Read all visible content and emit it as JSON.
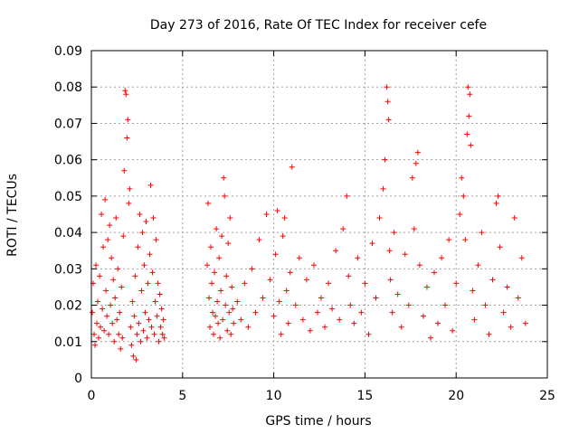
{
  "chart_data": {
    "type": "scatter",
    "title": "Day 273 of 2016, Rate Of TEC Index for receiver cefe",
    "xlabel": "GPS time / hours",
    "ylabel": "ROTI / TECUs",
    "xlim": [
      0,
      25
    ],
    "ylim": [
      0,
      0.09
    ],
    "xticks": [
      "0",
      "5",
      "10",
      "15",
      "20",
      "25"
    ],
    "yticks": [
      "0",
      "0.01",
      "0.02",
      "0.03",
      "0.04",
      "0.05",
      "0.06",
      "0.07",
      "0.08",
      "0.09"
    ],
    "grid": true,
    "marker": "+",
    "color": "#ff0000",
    "note": "Dense red '+' scatter; data gap from ~4.2 h to ~6.3 h. Points below are representative samples read from the plot.",
    "series": [
      {
        "name": "ROTI",
        "points": [
          [
            0.05,
            0.018
          ],
          [
            0.1,
            0.026
          ],
          [
            0.15,
            0.012
          ],
          [
            0.2,
            0.009
          ],
          [
            0.25,
            0.031
          ],
          [
            0.3,
            0.015
          ],
          [
            0.35,
            0.021
          ],
          [
            0.4,
            0.011
          ],
          [
            0.45,
            0.028
          ],
          [
            0.5,
            0.014
          ],
          [
            0.55,
            0.045
          ],
          [
            0.6,
            0.019
          ],
          [
            0.65,
            0.036
          ],
          [
            0.7,
            0.013
          ],
          [
            0.75,
            0.049
          ],
          [
            0.8,
            0.024
          ],
          [
            0.85,
            0.017
          ],
          [
            0.9,
            0.038
          ],
          [
            0.95,
            0.012
          ],
          [
            1.0,
            0.042
          ],
          [
            1.05,
            0.02
          ],
          [
            1.1,
            0.033
          ],
          [
            1.15,
            0.015
          ],
          [
            1.2,
            0.027
          ],
          [
            1.25,
            0.01
          ],
          [
            1.3,
            0.022
          ],
          [
            1.35,
            0.044
          ],
          [
            1.4,
            0.016
          ],
          [
            1.45,
            0.03
          ],
          [
            1.5,
            0.012
          ],
          [
            1.55,
            0.018
          ],
          [
            1.6,
            0.008
          ],
          [
            1.65,
            0.025
          ],
          [
            1.7,
            0.011
          ],
          [
            1.75,
            0.039
          ],
          [
            1.8,
            0.057
          ],
          [
            1.85,
            0.079
          ],
          [
            1.9,
            0.078
          ],
          [
            1.95,
            0.066
          ],
          [
            2.0,
            0.071
          ],
          [
            2.05,
            0.048
          ],
          [
            2.1,
            0.052
          ],
          [
            2.15,
            0.014
          ],
          [
            2.2,
            0.009
          ],
          [
            2.25,
            0.021
          ],
          [
            2.3,
            0.006
          ],
          [
            2.35,
            0.017
          ],
          [
            2.4,
            0.028
          ],
          [
            2.45,
            0.005
          ],
          [
            2.5,
            0.012
          ],
          [
            2.55,
            0.036
          ],
          [
            2.6,
            0.015
          ],
          [
            2.65,
            0.045
          ],
          [
            2.7,
            0.01
          ],
          [
            2.75,
            0.024
          ],
          [
            2.8,
            0.04
          ],
          [
            2.85,
            0.013
          ],
          [
            2.9,
            0.031
          ],
          [
            2.95,
            0.018
          ],
          [
            3.0,
            0.043
          ],
          [
            3.05,
            0.011
          ],
          [
            3.1,
            0.026
          ],
          [
            3.15,
            0.016
          ],
          [
            3.2,
            0.034
          ],
          [
            3.25,
            0.053
          ],
          [
            3.3,
            0.014
          ],
          [
            3.35,
            0.029
          ],
          [
            3.4,
            0.044
          ],
          [
            3.45,
            0.012
          ],
          [
            3.5,
            0.021
          ],
          [
            3.55,
            0.038
          ],
          [
            3.6,
            0.017
          ],
          [
            3.65,
            0.026
          ],
          [
            3.7,
            0.01
          ],
          [
            3.75,
            0.023
          ],
          [
            3.8,
            0.014
          ],
          [
            3.85,
            0.019
          ],
          [
            3.9,
            0.012
          ],
          [
            3.95,
            0.016
          ],
          [
            4.0,
            0.011
          ],
          [
            6.35,
            0.031
          ],
          [
            6.4,
            0.048
          ],
          [
            6.45,
            0.022
          ],
          [
            6.5,
            0.014
          ],
          [
            6.55,
            0.036
          ],
          [
            6.6,
            0.026
          ],
          [
            6.65,
            0.018
          ],
          [
            6.7,
            0.012
          ],
          [
            6.75,
            0.029
          ],
          [
            6.8,
            0.017
          ],
          [
            6.85,
            0.041
          ],
          [
            6.9,
            0.021
          ],
          [
            6.95,
            0.015
          ],
          [
            7.0,
            0.033
          ],
          [
            7.05,
            0.011
          ],
          [
            7.1,
            0.024
          ],
          [
            7.15,
            0.039
          ],
          [
            7.2,
            0.016
          ],
          [
            7.25,
            0.055
          ],
          [
            7.3,
            0.05
          ],
          [
            7.35,
            0.02
          ],
          [
            7.4,
            0.028
          ],
          [
            7.45,
            0.013
          ],
          [
            7.5,
            0.037
          ],
          [
            7.55,
            0.018
          ],
          [
            7.6,
            0.044
          ],
          [
            7.65,
            0.012
          ],
          [
            7.7,
            0.025
          ],
          [
            7.75,
            0.019
          ],
          [
            7.8,
            0.015
          ],
          [
            8.0,
            0.021
          ],
          [
            8.2,
            0.016
          ],
          [
            8.4,
            0.026
          ],
          [
            8.6,
            0.014
          ],
          [
            8.8,
            0.03
          ],
          [
            9.0,
            0.018
          ],
          [
            9.2,
            0.038
          ],
          [
            9.4,
            0.022
          ],
          [
            9.6,
            0.045
          ],
          [
            9.8,
            0.027
          ],
          [
            10.0,
            0.017
          ],
          [
            10.1,
            0.034
          ],
          [
            10.2,
            0.046
          ],
          [
            10.3,
            0.021
          ],
          [
            10.4,
            0.012
          ],
          [
            10.5,
            0.039
          ],
          [
            10.6,
            0.044
          ],
          [
            10.7,
            0.024
          ],
          [
            10.8,
            0.015
          ],
          [
            10.9,
            0.029
          ],
          [
            11.0,
            0.058
          ],
          [
            11.2,
            0.02
          ],
          [
            11.4,
            0.033
          ],
          [
            11.6,
            0.016
          ],
          [
            11.8,
            0.027
          ],
          [
            12.0,
            0.013
          ],
          [
            12.2,
            0.031
          ],
          [
            12.4,
            0.018
          ],
          [
            12.6,
            0.022
          ],
          [
            12.8,
            0.014
          ],
          [
            13.0,
            0.026
          ],
          [
            13.2,
            0.019
          ],
          [
            13.4,
            0.035
          ],
          [
            13.6,
            0.016
          ],
          [
            13.8,
            0.041
          ],
          [
            14.0,
            0.05
          ],
          [
            14.1,
            0.028
          ],
          [
            14.2,
            0.02
          ],
          [
            14.4,
            0.015
          ],
          [
            14.6,
            0.033
          ],
          [
            14.8,
            0.018
          ],
          [
            15.0,
            0.026
          ],
          [
            15.2,
            0.012
          ],
          [
            15.4,
            0.037
          ],
          [
            15.6,
            0.022
          ],
          [
            15.8,
            0.044
          ],
          [
            16.0,
            0.052
          ],
          [
            16.1,
            0.06
          ],
          [
            16.2,
            0.08
          ],
          [
            16.25,
            0.076
          ],
          [
            16.3,
            0.071
          ],
          [
            16.35,
            0.035
          ],
          [
            16.4,
            0.027
          ],
          [
            16.5,
            0.018
          ],
          [
            16.6,
            0.04
          ],
          [
            16.8,
            0.023
          ],
          [
            17.0,
            0.014
          ],
          [
            17.2,
            0.034
          ],
          [
            17.4,
            0.02
          ],
          [
            17.6,
            0.055
          ],
          [
            17.7,
            0.041
          ],
          [
            17.8,
            0.059
          ],
          [
            17.9,
            0.062
          ],
          [
            18.0,
            0.031
          ],
          [
            18.2,
            0.017
          ],
          [
            18.4,
            0.025
          ],
          [
            18.6,
            0.011
          ],
          [
            18.8,
            0.029
          ],
          [
            19.0,
            0.015
          ],
          [
            19.2,
            0.033
          ],
          [
            19.4,
            0.02
          ],
          [
            19.6,
            0.038
          ],
          [
            19.8,
            0.013
          ],
          [
            20.0,
            0.026
          ],
          [
            20.2,
            0.045
          ],
          [
            20.3,
            0.055
          ],
          [
            20.4,
            0.05
          ],
          [
            20.5,
            0.038
          ],
          [
            20.6,
            0.067
          ],
          [
            20.65,
            0.08
          ],
          [
            20.7,
            0.072
          ],
          [
            20.75,
            0.078
          ],
          [
            20.8,
            0.064
          ],
          [
            20.9,
            0.024
          ],
          [
            21.0,
            0.016
          ],
          [
            21.2,
            0.031
          ],
          [
            21.4,
            0.04
          ],
          [
            21.6,
            0.02
          ],
          [
            21.8,
            0.012
          ],
          [
            22.0,
            0.027
          ],
          [
            22.2,
            0.048
          ],
          [
            22.3,
            0.05
          ],
          [
            22.4,
            0.036
          ],
          [
            22.6,
            0.018
          ],
          [
            22.8,
            0.025
          ],
          [
            23.0,
            0.014
          ],
          [
            23.2,
            0.044
          ],
          [
            23.4,
            0.022
          ],
          [
            23.6,
            0.033
          ],
          [
            23.8,
            0.015
          ]
        ]
      }
    ]
  }
}
